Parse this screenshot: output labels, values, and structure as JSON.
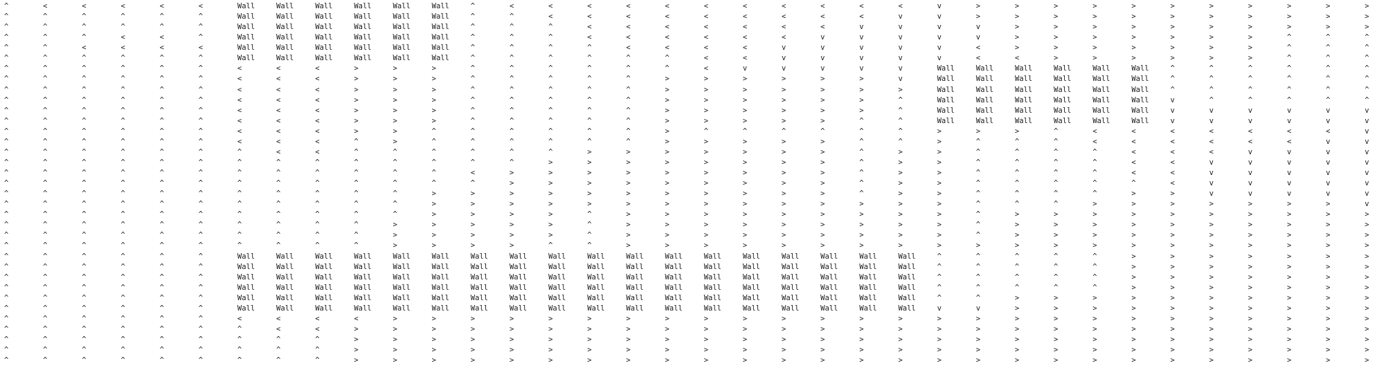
{
  "grid": {
    "rows": [
      "^ < < < < < Wall Wall Wall Wall Wall Wall ^ < < < < < < < < < < < v > > > > > > > > > > > ^",
      "^ ^ ^ ^ ^ ^ Wall Wall Wall Wall Wall Wall ^ ^ < < < < < < < < < v v > > > > > > > > > > > ^",
      "^ ^ ^ ^ ^ ^ Wall Wall Wall Wall Wall Wall ^ ^ ^ < < < < < < < v v v v > > > > > > > > > > ^",
      "^ ^ ^ < < ^ Wall Wall Wall Wall Wall Wall ^ ^ ^ < < < < < < v v v v v > > > > > > > ^ ^ ^ ^",
      "^ ^ < < < < Wall Wall Wall Wall Wall Wall ^ ^ ^ ^ < < < < v v v v v < > > > > > > > ^ ^ ^ ^",
      "^ ^ ^ ^ ^ ^ Wall Wall Wall Wall Wall Wall ^ ^ ^ ^ ^ ^ < < v v v v v < < > > > > > > ^ ^ ^ ^",
      "^ ^ ^ ^ ^ ^ < < < > > > ^ ^ ^ ^ ^ ^ < v v v v v Wall Wall Wall Wall Wall Wall ^ ^ ^ ^ ^ ^",
      "^ ^ ^ ^ ^ ^ < < < > > > ^ ^ ^ ^ ^ > > > > > > v Wall Wall Wall Wall Wall Wall ^ ^ ^ ^ ^ ^",
      "^ ^ ^ ^ ^ ^ < < < > > > ^ ^ ^ ^ ^ > > > > > > > Wall Wall Wall Wall Wall Wall ^ ^ ^ ^ ^ ^",
      "^ ^ ^ ^ ^ ^ < < < > > > ^ ^ ^ ^ ^ > > > > > > ^ Wall Wall Wall Wall Wall Wall v ^ ^ ^ ^ ^",
      "^ ^ ^ ^ ^ ^ < < < > > > ^ ^ ^ ^ ^ > > > > > > ^ Wall Wall Wall Wall Wall Wall v v v v v v",
      "^ ^ ^ ^ ^ ^ < < < > > > ^ ^ ^ ^ ^ > > > > > ^ ^ Wall Wall Wall Wall Wall Wall v v v v v v",
      "^ ^ ^ ^ ^ ^ < < < > > ^ ^ ^ ^ ^ ^ > ^ ^ ^ ^ ^ ^ > > > ^ < < < < < < < v",
      "^ ^ ^ ^ ^ ^ < < < ^ > ^ ^ ^ ^ ^ ^ > > > > > ^ ^ > ^ ^ ^ < < < < < < v v",
      "^ ^ ^ ^ ^ ^ ^ < < ^ ^ ^ ^ ^ ^ > > > > > > > ^ > > ^ ^ ^ ^ < < < v v v v",
      "^ ^ ^ ^ ^ ^ ^ ^ ^ ^ ^ ^ ^ ^ > > > > > > > > ^ > > ^ ^ ^ ^ < < v v v v v",
      "^ ^ ^ ^ ^ ^ ^ ^ ^ ^ ^ ^ < > > > > > > > > > ^ > > ^ ^ ^ ^ < < v v v v v",
      "^ ^ ^ ^ ^ ^ ^ ^ ^ ^ ^ ^ ^ > > > > > > > > > ^ > > ^ ^ ^ ^ ^ < v v v v v",
      "^ ^ ^ ^ ^ ^ ^ ^ ^ ^ ^ > > > > > > > > > > > ^ > > ^ ^ ^ ^ > > v v v v v",
      "^ ^ ^ ^ ^ ^ ^ ^ ^ ^ ^ > > > > > > > > > > > > > > ^ ^ ^ > > > > > > > v",
      "^ ^ ^ ^ ^ ^ ^ ^ ^ ^ ^ > > > > ^ > > > > > > > > > ^ > > > > > > > > > >",
      "^ ^ ^ ^ ^ ^ ^ ^ ^ ^ > > > > > ^ > > > > > > > > > ^ > > > > > > > > > >",
      "^ ^ ^ ^ ^ ^ ^ ^ ^ ^ > > > > > ^ > > > > > > > > > ^ > > > > > > > > > >",
      "^ ^ ^ ^ ^ ^ ^ ^ ^ ^ > > > > ^ ^ > > > > > > > > > > > > > > > > > > > >",
      "^ ^ ^ ^ ^ ^ Wall Wall Wall Wall Wall Wall Wall Wall Wall Wall Wall Wall Wall Wall Wall Wall Wall Wall ^ ^ ^ ^ ^ > > > > > > >",
      "^ ^ ^ ^ ^ ^ Wall Wall Wall Wall Wall Wall Wall Wall Wall Wall Wall Wall Wall Wall Wall Wall Wall Wall ^ ^ ^ ^ ^ > > > > > > >",
      "^ ^ ^ ^ ^ ^ Wall Wall Wall Wall Wall Wall Wall Wall Wall Wall Wall Wall Wall Wall Wall Wall Wall Wall ^ ^ ^ ^ ^ > > > > > > >",
      "^ ^ ^ ^ ^ ^ Wall Wall Wall Wall Wall Wall Wall Wall Wall Wall Wall Wall Wall Wall Wall Wall Wall Wall ^ ^ ^ ^ ^ > > > > > > >",
      "^ ^ ^ ^ ^ ^ Wall Wall Wall Wall Wall Wall Wall Wall Wall Wall Wall Wall Wall Wall Wall Wall Wall Wall ^ ^ > > > > > > > > > >",
      "^ ^ ^ ^ ^ ^ Wall Wall Wall Wall Wall Wall Wall Wall Wall Wall Wall Wall Wall Wall Wall Wall Wall Wall v v > > > > > > > > > >",
      "^ ^ ^ ^ ^ ^ < < < < > > > > > > > > > > > > > > > > > > > > > > > > > >",
      "^ ^ ^ ^ ^ ^ ^ < < > > > > > > > > > > > > > > > > > > > > > > > > > > >",
      "^ ^ ^ ^ ^ ^ ^ ^ ^ > > > > > > > > > > > > > > > > > > > > > > > > > > >",
      "^ ^ ^ ^ ^ ^ ^ ^ ^ > > > > > > > > > > > > > > > > > > > > > > > > > > >",
      "^ ^ ^ ^ ^ ^ ^ ^ ^ > > > > > > > > > > > > > > > > > > > > > > > > > > >"
    ]
  }
}
